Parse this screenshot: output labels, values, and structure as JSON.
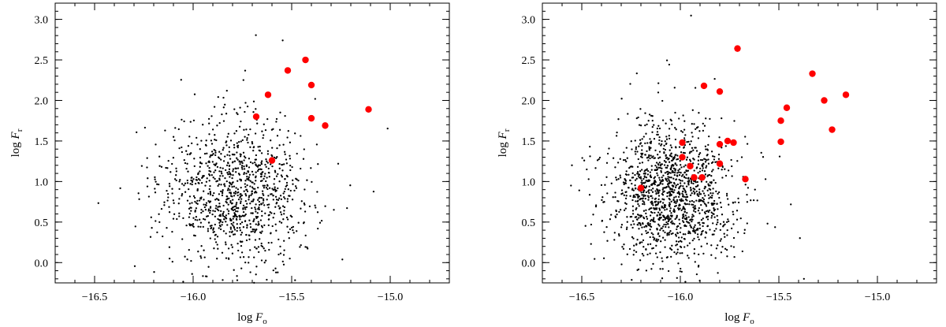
{
  "chart_data": [
    {
      "type": "scatter",
      "xlabel": {
        "prefix": "log ",
        "var": "F",
        "sub": "o"
      },
      "ylabel": {
        "prefix": "log ",
        "var": "F",
        "sub": "r"
      },
      "xlim": [
        -16.7,
        -14.7
      ],
      "ylim": [
        -0.25,
        3.2
      ],
      "xticks": [
        -16.5,
        -16.0,
        -15.5,
        -15.0
      ],
      "xtick_labels": [
        "−16.5",
        "−16.0",
        "−15.5",
        "−15.0"
      ],
      "yticks": [
        0.0,
        0.5,
        1.0,
        1.5,
        2.0,
        2.5,
        3.0
      ],
      "ytick_labels": [
        "0.0",
        "0.5",
        "1.0",
        "1.5",
        "2.0",
        "2.5",
        "3.0"
      ],
      "background": {
        "n": 1100,
        "x_mean": -15.78,
        "x_sd": 0.17,
        "y_mean": 0.85,
        "y_sd": 0.42,
        "seed": 11,
        "color": "#000000"
      },
      "series": [
        {
          "color": "#ff0000",
          "points": [
            [
              -15.43,
              2.5
            ],
            [
              -15.52,
              2.37
            ],
            [
              -15.4,
              2.19
            ],
            [
              -15.62,
              2.07
            ],
            [
              -15.11,
              1.89
            ],
            [
              -15.68,
              1.8
            ],
            [
              -15.4,
              1.78
            ],
            [
              -15.33,
              1.69
            ],
            [
              -15.6,
              1.26
            ]
          ]
        }
      ]
    },
    {
      "type": "scatter",
      "xlabel": {
        "prefix": "log ",
        "var": "F",
        "sub": "o"
      },
      "ylabel": {
        "prefix": "log ",
        "var": "F",
        "sub": "r"
      },
      "xlim": [
        -16.7,
        -14.7
      ],
      "ylim": [
        -0.25,
        3.2
      ],
      "xticks": [
        -16.5,
        -16.0,
        -15.5,
        -15.0
      ],
      "xtick_labels": [
        "−16.5",
        "−16.0",
        "−15.5",
        "−15.0"
      ],
      "yticks": [
        0.0,
        0.5,
        1.0,
        1.5,
        2.0,
        2.5,
        3.0
      ],
      "ytick_labels": [
        "0.0",
        "0.5",
        "1.0",
        "1.5",
        "2.0",
        "2.5",
        "3.0"
      ],
      "background": {
        "n": 1400,
        "x_mean": -16.05,
        "x_sd": 0.15,
        "y_mean": 0.85,
        "y_sd": 0.4,
        "seed": 29,
        "color": "#000000"
      },
      "series": [
        {
          "color": "#ff0000",
          "points": [
            [
              -15.71,
              2.64
            ],
            [
              -15.33,
              2.33
            ],
            [
              -15.88,
              2.18
            ],
            [
              -15.8,
              2.11
            ],
            [
              -15.16,
              2.07
            ],
            [
              -15.27,
              2.0
            ],
            [
              -15.46,
              1.91
            ],
            [
              -15.49,
              1.75
            ],
            [
              -15.23,
              1.64
            ],
            [
              -15.49,
              1.49
            ],
            [
              -15.99,
              1.48
            ],
            [
              -15.76,
              1.5
            ],
            [
              -15.73,
              1.48
            ],
            [
              -15.8,
              1.46
            ],
            [
              -15.99,
              1.3
            ],
            [
              -15.95,
              1.19
            ],
            [
              -15.8,
              1.22
            ],
            [
              -15.93,
              1.05
            ],
            [
              -15.89,
              1.05
            ],
            [
              -15.67,
              1.03
            ],
            [
              -16.2,
              0.92
            ]
          ]
        }
      ]
    }
  ]
}
